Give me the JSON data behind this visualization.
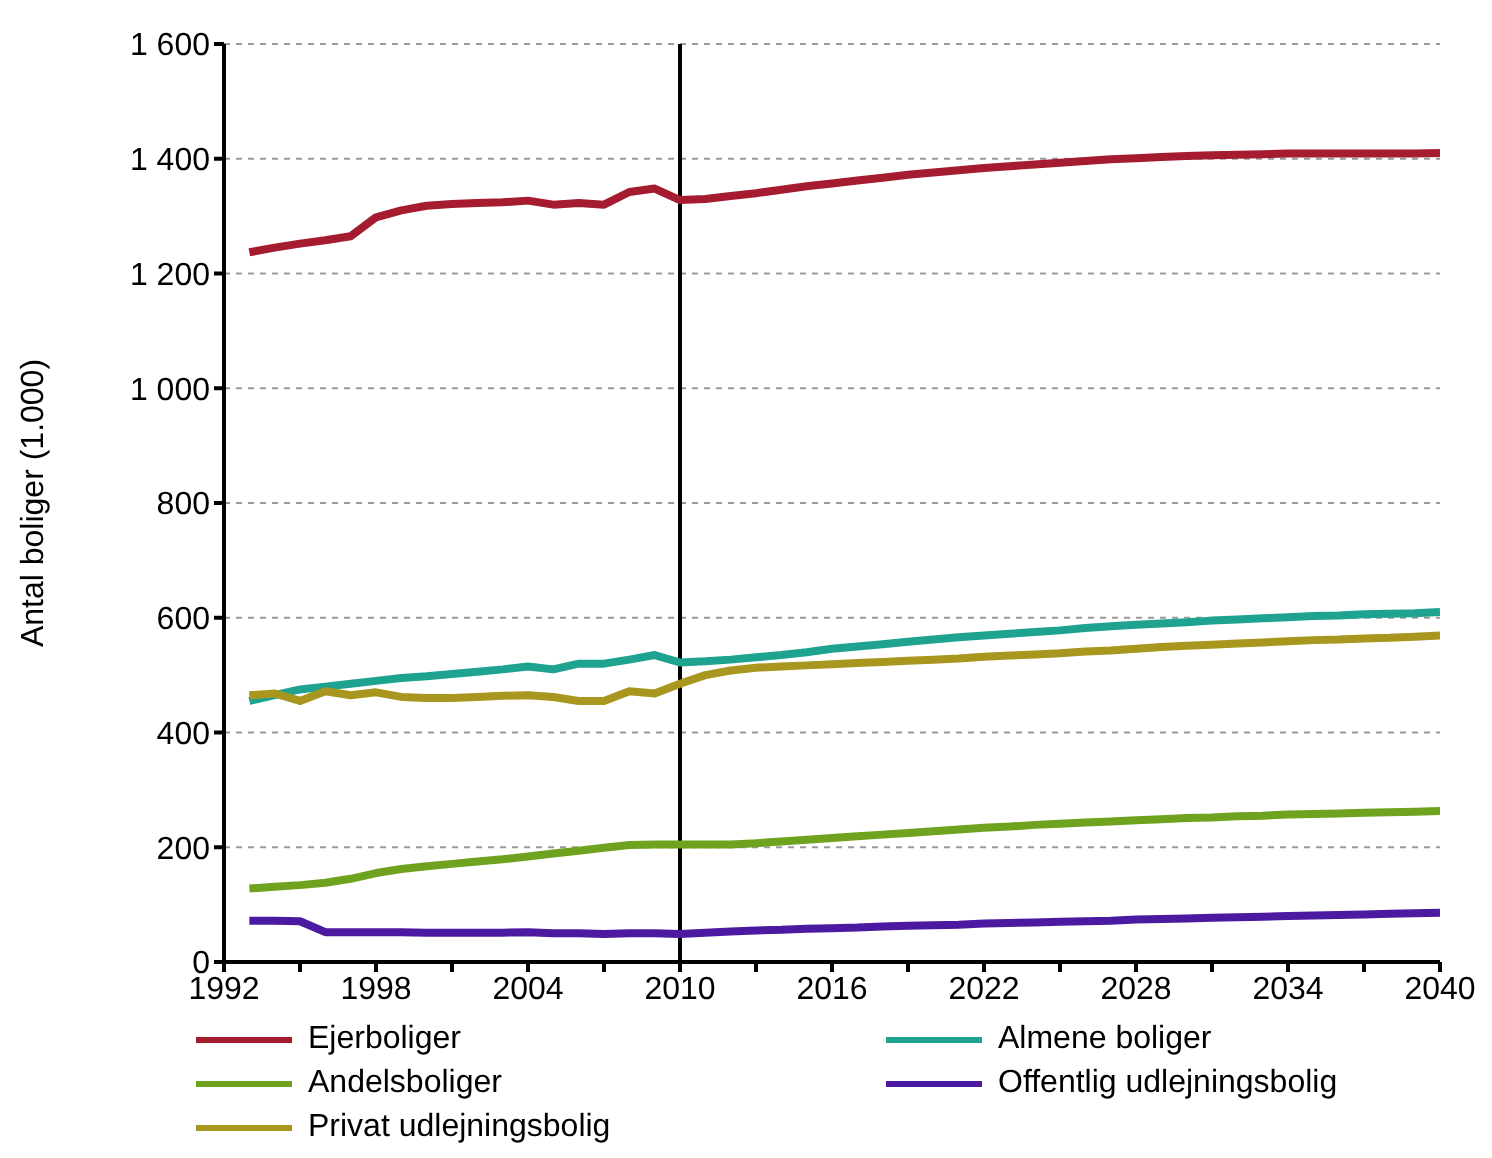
{
  "chart_data": {
    "type": "line",
    "ylabel": "Antal boliger  (1.000)",
    "x": [
      1993,
      1994,
      1995,
      1996,
      1997,
      1998,
      1999,
      2000,
      2001,
      2002,
      2003,
      2004,
      2005,
      2006,
      2007,
      2008,
      2009,
      2010,
      2011,
      2012,
      2013,
      2014,
      2015,
      2016,
      2017,
      2018,
      2019,
      2020,
      2021,
      2022,
      2023,
      2024,
      2025,
      2026,
      2027,
      2028,
      2029,
      2030,
      2031,
      2032,
      2033,
      2034,
      2035,
      2036,
      2037,
      2038,
      2039,
      2040
    ],
    "series": [
      {
        "name": "Ejerboliger",
        "color": "#a51c30",
        "values": [
          1237,
          1245,
          1252,
          1258,
          1265,
          1298,
          1310,
          1318,
          1321,
          1323,
          1324,
          1327,
          1320,
          1323,
          1320,
          1342,
          1348,
          1328,
          1330,
          1335,
          1340,
          1346,
          1352,
          1357,
          1362,
          1367,
          1372,
          1376,
          1380,
          1384,
          1387,
          1390,
          1393,
          1396,
          1399,
          1401,
          1403,
          1405,
          1406,
          1407,
          1408,
          1409,
          1409,
          1409,
          1409,
          1409,
          1409,
          1410
        ]
      },
      {
        "name": "Almene boliger",
        "color": "#1fa391",
        "values": [
          455,
          465,
          475,
          480,
          485,
          490,
          495,
          498,
          502,
          506,
          510,
          515,
          510,
          520,
          520,
          527,
          535,
          522,
          524,
          527,
          531,
          535,
          540,
          546,
          550,
          554,
          558,
          562,
          566,
          569,
          572,
          575,
          578,
          582,
          585,
          588,
          590,
          592,
          595,
          597,
          599,
          601,
          603,
          604,
          606,
          607,
          608,
          610
        ]
      },
      {
        "name": "Andelsboliger",
        "color": "#6fa31f",
        "values": [
          128,
          131,
          134,
          138,
          145,
          155,
          162,
          167,
          171,
          175,
          179,
          184,
          189,
          194,
          199,
          204,
          205,
          205,
          205,
          205,
          207,
          210,
          213,
          216,
          219,
          222,
          225,
          228,
          231,
          234,
          236,
          239,
          241,
          243,
          245,
          247,
          249,
          251,
          252,
          254,
          255,
          257,
          258,
          259,
          260,
          261,
          262,
          263
        ]
      },
      {
        "name": "Offentlig udlejningsbolig",
        "color": "#4b1aa0",
        "values": [
          72,
          72,
          71,
          52,
          52,
          52,
          52,
          51,
          51,
          51,
          51,
          52,
          50,
          50,
          49,
          50,
          50,
          49,
          51,
          53,
          55,
          56,
          58,
          59,
          60,
          62,
          63,
          64,
          65,
          67,
          68,
          69,
          70,
          71,
          72,
          74,
          75,
          76,
          77,
          78,
          79,
          80,
          81,
          82,
          83,
          84,
          85,
          86
        ]
      },
      {
        "name": "Privat udlejningsbolig",
        "color": "#a8961e",
        "values": [
          465,
          468,
          455,
          472,
          465,
          470,
          462,
          460,
          460,
          462,
          464,
          465,
          462,
          455,
          455,
          472,
          468,
          485,
          500,
          508,
          513,
          515,
          517,
          519,
          521,
          523,
          525,
          527,
          529,
          532,
          534,
          536,
          538,
          541,
          543,
          546,
          549,
          551,
          553,
          555,
          557,
          559,
          561,
          562,
          564,
          565,
          567,
          569
        ]
      }
    ],
    "xlim": [
      1992,
      2040
    ],
    "xticks": [
      1992,
      {
        "value": 1995,
        "label": null
      },
      1998,
      {
        "value": 2001,
        "label": null
      },
      2004,
      {
        "value": 2007,
        "label": null
      },
      2010,
      {
        "value": 2013,
        "label": null
      },
      2016,
      {
        "value": 2019,
        "label": null
      },
      2022,
      {
        "value": 2025,
        "label": null
      },
      2028,
      {
        "value": 2031,
        "label": null
      },
      2034,
      {
        "value": 2037,
        "label": null
      },
      2040
    ],
    "ylim": [
      0,
      1600
    ],
    "yticks": [
      0,
      200,
      400,
      600,
      800,
      {
        "value": 1000,
        "label": "1 000"
      },
      {
        "value": 1200,
        "label": "1 200"
      },
      {
        "value": 1400,
        "label": "1 400"
      },
      {
        "value": 1600,
        "label": "1 600"
      }
    ],
    "grid": "y",
    "legend": "bottom",
    "marker": "none",
    "line_style": "solid",
    "ref_lines": [
      {
        "axis": "x",
        "value": 2010,
        "color": "#000000"
      }
    ]
  }
}
